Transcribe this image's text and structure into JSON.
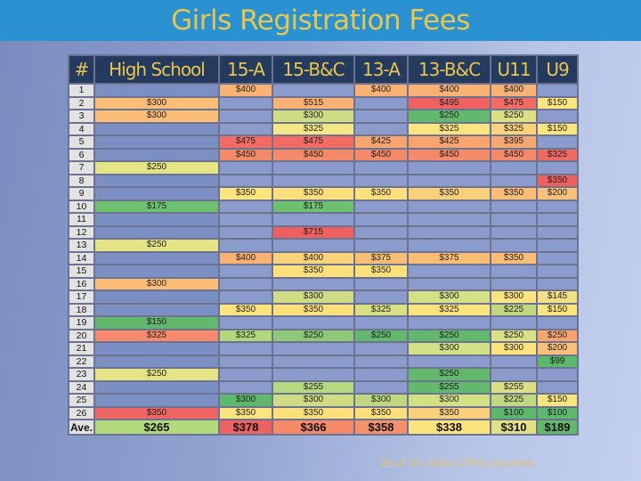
{
  "title": "Girls Registration Fees",
  "table": {
    "headers": [
      "#",
      "High School",
      "15-A",
      "15-B&C",
      "13-A",
      "13-B&C",
      "U11",
      "U9"
    ],
    "rows": [
      {
        "num": "1",
        "cells": [
          "",
          "$400",
          "",
          "$400",
          "$400",
          "$400",
          ""
        ]
      },
      {
        "num": "2",
        "cells": [
          "$300",
          "",
          "$515",
          "",
          "$495",
          "$475",
          "$150"
        ]
      },
      {
        "num": "3",
        "cells": [
          "$300",
          "",
          "$300",
          "",
          "$250",
          "$250",
          ""
        ]
      },
      {
        "num": "4",
        "cells": [
          "",
          "",
          "$325",
          "",
          "$325",
          "$325",
          "$150"
        ]
      },
      {
        "num": "5",
        "cells": [
          "",
          "$475",
          "$475",
          "$425",
          "$425",
          "$395",
          ""
        ]
      },
      {
        "num": "6",
        "cells": [
          "",
          "$450",
          "$450",
          "$450",
          "$450",
          "$450",
          "$325"
        ]
      },
      {
        "num": "7",
        "cells": [
          "$250",
          "",
          "",
          "",
          "",
          "",
          ""
        ]
      },
      {
        "num": "8",
        "cells": [
          "",
          "",
          "",
          "",
          "",
          "",
          "$350"
        ]
      },
      {
        "num": "9",
        "cells": [
          "",
          "$350",
          "$350",
          "$350",
          "$350",
          "$350",
          "$200"
        ]
      },
      {
        "num": "10",
        "cells": [
          "$175",
          "",
          "$175",
          "",
          "",
          "",
          ""
        ]
      },
      {
        "num": "11",
        "cells": [
          "",
          "",
          "",
          "",
          "",
          "",
          ""
        ]
      },
      {
        "num": "12",
        "cells": [
          "",
          "",
          "$715",
          "",
          "",
          "",
          ""
        ]
      },
      {
        "num": "13",
        "cells": [
          "$250",
          "",
          "",
          "",
          "",
          "",
          ""
        ]
      },
      {
        "num": "14",
        "cells": [
          "",
          "$400",
          "$400",
          "$375",
          "$375",
          "$350",
          ""
        ]
      },
      {
        "num": "15",
        "cells": [
          "",
          "",
          "$350",
          "$350",
          "",
          "",
          ""
        ]
      },
      {
        "num": "16",
        "cells": [
          "$300",
          "",
          "",
          "",
          "",
          "",
          ""
        ]
      },
      {
        "num": "17",
        "cells": [
          "",
          "",
          "$300",
          "",
          "$300",
          "$300",
          "$145"
        ]
      },
      {
        "num": "18",
        "cells": [
          "",
          "$350",
          "$350",
          "$325",
          "$325",
          "$225",
          "$150"
        ]
      },
      {
        "num": "19",
        "cells": [
          "$150",
          "",
          "",
          "",
          "",
          "",
          ""
        ]
      },
      {
        "num": "20",
        "cells": [
          "$325",
          "$325",
          "$250",
          "$250",
          "$250",
          "$250",
          "$250"
        ]
      },
      {
        "num": "21",
        "cells": [
          "",
          "",
          "",
          "",
          "$300",
          "$300",
          "$200"
        ]
      },
      {
        "num": "22",
        "cells": [
          "",
          "",
          "",
          "",
          "",
          "",
          "$99"
        ]
      },
      {
        "num": "23",
        "cells": [
          "$250",
          "",
          "",
          "",
          "$250",
          "",
          ""
        ]
      },
      {
        "num": "24",
        "cells": [
          "",
          "",
          "$255",
          "",
          "$255",
          "$255",
          ""
        ]
      },
      {
        "num": "25",
        "cells": [
          "",
          "$300",
          "$300",
          "$300",
          "$300",
          "$225",
          "$150"
        ]
      },
      {
        "num": "26",
        "cells": [
          "$350",
          "$350",
          "$350",
          "$350",
          "$350",
          "$100",
          "$100"
        ]
      }
    ],
    "average": {
      "num": "Ave.",
      "cells": [
        "$265",
        "$378",
        "$366",
        "$358",
        "$338",
        "$310",
        "$189"
      ]
    }
  },
  "colors": {
    "title_bar": "#2a92d0",
    "title_text": "#e8c650",
    "header_bg": "#243a5e",
    "empty_cell": "#8b9ccc",
    "scale": {
      "99": "#5cb86c",
      "100": "#5cb86c",
      "145": "#f4e07e",
      "150": "#fce47e",
      "175": "#6cc070",
      "200": "#fccc7c",
      "225": "#c8dc80",
      "250": "#62b86c",
      "255": "#6cbc6c",
      "300": "#d0dc84",
      "325": "#fce47e",
      "350": "#fbd37a",
      "375": "#f9be74",
      "395": "#f7a870",
      "400": "#f9b274",
      "425": "#f7a46e",
      "450": "#f58a6a",
      "475": "#f26c64",
      "495": "#f06262",
      "515": "#f9b274",
      "715": "#ef5f5f"
    }
  },
  "footer_note": "26 of 33 clubs (79%) reported"
}
